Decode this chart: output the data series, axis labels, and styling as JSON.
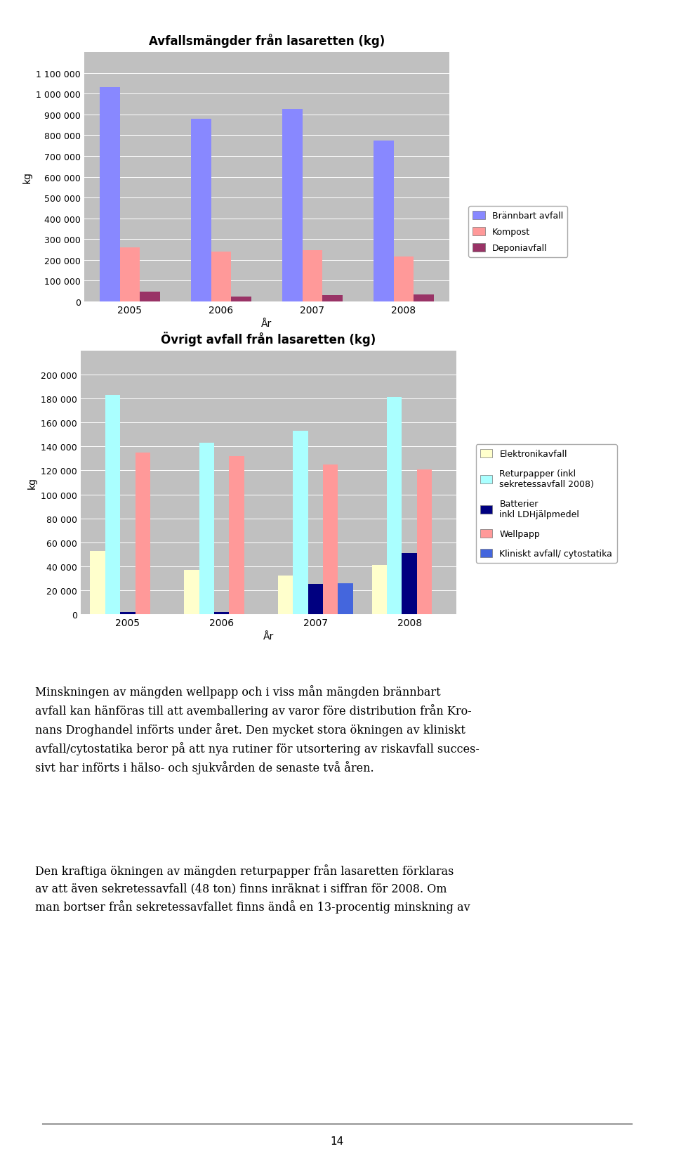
{
  "chart1": {
    "title": "Avfallsmängder från lasaretten (kg)",
    "xlabel": "År",
    "ylabel": "kg",
    "years": [
      2005,
      2006,
      2007,
      2008
    ],
    "series": [
      {
        "label": "Brännbart avfall",
        "color": "#8888FF",
        "values": [
          1030000,
          880000,
          925000,
          775000
        ]
      },
      {
        "label": "Kompost",
        "color": "#FF9999",
        "values": [
          260000,
          240000,
          247000,
          215000
        ]
      },
      {
        "label": "Deponiavfall",
        "color": "#993366",
        "values": [
          48000,
          25000,
          30000,
          33000
        ]
      }
    ],
    "ylim": [
      0,
      1200000
    ],
    "yticks": [
      0,
      100000,
      200000,
      300000,
      400000,
      500000,
      600000,
      700000,
      800000,
      900000,
      1000000,
      1100000
    ],
    "bg_color": "#C0C0C0"
  },
  "chart2": {
    "title": "Övrigt avfall från lasaretten (kg)",
    "xlabel": "År",
    "ylabel": "kg",
    "years": [
      2005,
      2006,
      2007,
      2008
    ],
    "series": [
      {
        "label": "Elektronikavfall",
        "color": "#FFFFCC",
        "values": [
          53000,
          37000,
          32000,
          41000
        ]
      },
      {
        "label": "Returpapper (inkl\nsekretessavfall 2008)",
        "color": "#AAFFFF",
        "values": [
          183000,
          143000,
          153000,
          181000
        ]
      },
      {
        "label": "Batterier\ninkl LDHjälpmedel",
        "color": "#000080",
        "values": [
          2000,
          2000,
          25000,
          51000
        ]
      },
      {
        "label": "Wellpapp",
        "color": "#FF9999",
        "values": [
          135000,
          132000,
          125000,
          121000
        ]
      },
      {
        "label": "Kliniskt avfall/ cytostatika",
        "color": "#4466DD",
        "values": [
          0,
          0,
          26000,
          0
        ]
      }
    ],
    "ylim": [
      0,
      220000
    ],
    "yticks": [
      0,
      20000,
      40000,
      60000,
      80000,
      100000,
      120000,
      140000,
      160000,
      180000,
      200000
    ],
    "bg_color": "#C0C0C0"
  },
  "text_para1": "Minskningen av mängden wellpapp och i viss mån mängden brännbart\navfall kan hänföras till att avemballering av varor före distribution från Kro-\nnans Droghandel införts under året. Den mycket stora ökningen av kliniskt\navfall/cytostatika beror på att nya rutiner för utsortering av riskavfall succes-\nsivt har införts i hälso- och sjukvården de senaste två åren.",
  "text_para2": "Den kraftiga ökningen av mängden returpapper från lasaretten förklaras\nav att även sekretessavfall (48 ton) finns inräknat i siffran för 2008. Om\nman bortser från sekretessavfallet finns ändå en 13-procentig minskning av",
  "page_number": "14",
  "fig_bg": "#FFFFFF"
}
